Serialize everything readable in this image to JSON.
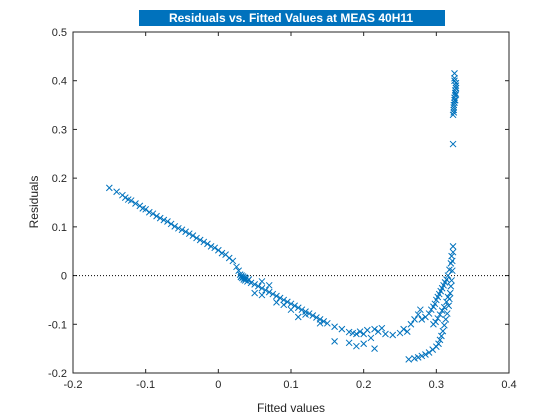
{
  "chart_data": {
    "type": "scatter",
    "title": "Residuals vs. Fitted Values at MEAS 40H11",
    "xlabel": "Fitted values",
    "ylabel": "Residuals",
    "xlim": [
      -0.2,
      0.4
    ],
    "ylim": [
      -0.2,
      0.5
    ],
    "xticks": [
      -0.2,
      -0.1,
      0,
      0.1,
      0.2,
      0.3,
      0.4
    ],
    "xtick_labels": [
      "-0.2",
      "-0.1",
      "0",
      "0.1",
      "0.2",
      "0.3",
      "0.4"
    ],
    "yticks": [
      -0.2,
      -0.1,
      0,
      0.1,
      0.2,
      0.3,
      0.4,
      0.5
    ],
    "ytick_labels": [
      "-0.2",
      "-0.1",
      "0",
      "0.1",
      "0.2",
      "0.3",
      "0.4",
      "0.5"
    ],
    "marker": "x",
    "reference_line": {
      "y": 0,
      "style": "dotted"
    },
    "colors": {
      "series": "#0072BD",
      "title_bg": "#0072BD",
      "axis": "#262626"
    },
    "series": [
      {
        "points": [
          [
            -0.15,
            0.18
          ],
          [
            -0.14,
            0.172
          ],
          [
            -0.132,
            0.165
          ],
          [
            -0.128,
            0.16
          ],
          [
            -0.124,
            0.156
          ],
          [
            -0.12,
            0.154
          ],
          [
            -0.114,
            0.148
          ],
          [
            -0.108,
            0.143
          ],
          [
            -0.104,
            0.138
          ],
          [
            -0.1,
            0.136
          ],
          [
            -0.095,
            0.13
          ],
          [
            -0.09,
            0.127
          ],
          [
            -0.085,
            0.122
          ],
          [
            -0.08,
            0.118
          ],
          [
            -0.075,
            0.114
          ],
          [
            -0.07,
            0.111
          ],
          [
            -0.065,
            0.106
          ],
          [
            -0.06,
            0.101
          ],
          [
            -0.055,
            0.097
          ],
          [
            -0.05,
            0.094
          ],
          [
            -0.045,
            0.09
          ],
          [
            -0.04,
            0.086
          ],
          [
            -0.035,
            0.082
          ],
          [
            -0.03,
            0.077
          ],
          [
            -0.025,
            0.073
          ],
          [
            -0.02,
            0.069
          ],
          [
            -0.015,
            0.065
          ],
          [
            -0.01,
            0.06
          ],
          [
            -0.005,
            0.057
          ],
          [
            0.0,
            0.052
          ],
          [
            0.005,
            0.046
          ],
          [
            0.01,
            0.043
          ],
          [
            0.015,
            0.036
          ],
          [
            0.02,
            0.03
          ],
          [
            0.025,
            0.018
          ],
          [
            0.028,
            0.01
          ],
          [
            0.03,
            0.002
          ],
          [
            0.031,
            -0.003
          ],
          [
            0.032,
            0.0
          ],
          [
            0.033,
            -0.005
          ],
          [
            0.034,
            -0.002
          ],
          [
            0.035,
            -0.008
          ],
          [
            0.036,
            -0.004
          ],
          [
            0.037,
            -0.01
          ],
          [
            0.038,
            -0.006
          ],
          [
            0.04,
            -0.012
          ],
          [
            0.042,
            -0.008
          ],
          [
            0.045,
            -0.015
          ],
          [
            0.05,
            -0.018
          ],
          [
            0.055,
            -0.022
          ],
          [
            0.06,
            -0.026
          ],
          [
            0.065,
            -0.03
          ],
          [
            0.07,
            -0.034
          ],
          [
            0.075,
            -0.038
          ],
          [
            0.08,
            -0.042
          ],
          [
            0.085,
            -0.046
          ],
          [
            0.09,
            -0.05
          ],
          [
            0.095,
            -0.054
          ],
          [
            0.1,
            -0.058
          ],
          [
            0.105,
            -0.062
          ],
          [
            0.11,
            -0.066
          ],
          [
            0.115,
            -0.07
          ],
          [
            0.12,
            -0.074
          ],
          [
            0.125,
            -0.078
          ],
          [
            0.13,
            -0.082
          ],
          [
            0.135,
            -0.086
          ],
          [
            0.14,
            -0.09
          ],
          [
            0.145,
            -0.094
          ],
          [
            0.15,
            -0.098
          ],
          [
            0.16,
            -0.105
          ],
          [
            0.17,
            -0.11
          ],
          [
            0.18,
            -0.116
          ],
          [
            0.185,
            -0.118
          ],
          [
            0.19,
            -0.12
          ],
          [
            0.195,
            -0.115
          ],
          [
            0.2,
            -0.12
          ],
          [
            0.205,
            -0.112
          ],
          [
            0.21,
            -0.128
          ],
          [
            0.215,
            -0.11
          ],
          [
            0.22,
            -0.115
          ],
          [
            0.225,
            -0.108
          ],
          [
            0.23,
            -0.12
          ],
          [
            0.24,
            -0.122
          ],
          [
            0.25,
            -0.118
          ],
          [
            0.255,
            -0.11
          ],
          [
            0.26,
            -0.115
          ],
          [
            0.265,
            -0.1
          ],
          [
            0.27,
            -0.09
          ],
          [
            0.275,
            -0.08
          ],
          [
            0.278,
            -0.07
          ],
          [
            0.16,
            -0.135
          ],
          [
            0.18,
            -0.138
          ],
          [
            0.19,
            -0.145
          ],
          [
            0.2,
            -0.14
          ],
          [
            0.215,
            -0.15
          ],
          [
            0.12,
            -0.08
          ],
          [
            0.09,
            -0.06
          ],
          [
            0.06,
            -0.04
          ],
          [
            0.05,
            -0.036
          ],
          [
            0.1,
            -0.07
          ],
          [
            0.08,
            -0.055
          ],
          [
            0.11,
            -0.085
          ],
          [
            0.14,
            -0.098
          ],
          [
            0.07,
            -0.02
          ],
          [
            0.06,
            -0.012
          ],
          [
            0.262,
            -0.172
          ],
          [
            0.27,
            -0.17
          ],
          [
            0.275,
            -0.168
          ],
          [
            0.28,
            -0.165
          ],
          [
            0.285,
            -0.162
          ],
          [
            0.29,
            -0.158
          ],
          [
            0.295,
            -0.152
          ],
          [
            0.3,
            -0.146
          ],
          [
            0.303,
            -0.14
          ],
          [
            0.305,
            -0.132
          ],
          [
            0.307,
            -0.124
          ],
          [
            0.309,
            -0.114
          ],
          [
            0.311,
            -0.102
          ],
          [
            0.313,
            -0.09
          ],
          [
            0.315,
            -0.078
          ],
          [
            0.317,
            -0.062
          ],
          [
            0.318,
            -0.048
          ],
          [
            0.319,
            -0.036
          ],
          [
            0.32,
            -0.022
          ],
          [
            0.321,
            -0.01
          ],
          [
            0.322,
            0.01
          ],
          [
            0.322,
            0.03
          ],
          [
            0.323,
            0.048
          ],
          [
            0.323,
            0.06
          ],
          [
            0.28,
            -0.09
          ],
          [
            0.285,
            -0.085
          ],
          [
            0.29,
            -0.078
          ],
          [
            0.293,
            -0.07
          ],
          [
            0.296,
            -0.064
          ],
          [
            0.298,
            -0.058
          ],
          [
            0.3,
            -0.05
          ],
          [
            0.302,
            -0.044
          ],
          [
            0.304,
            -0.038
          ],
          [
            0.306,
            -0.032
          ],
          [
            0.308,
            -0.026
          ],
          [
            0.31,
            -0.02
          ],
          [
            0.312,
            -0.014
          ],
          [
            0.314,
            -0.008
          ],
          [
            0.316,
            0.0
          ],
          [
            0.318,
            0.012
          ],
          [
            0.296,
            -0.1
          ],
          [
            0.299,
            -0.095
          ],
          [
            0.302,
            -0.088
          ],
          [
            0.305,
            -0.08
          ],
          [
            0.308,
            -0.072
          ],
          [
            0.311,
            -0.065
          ],
          [
            0.314,
            -0.054
          ],
          [
            0.316,
            -0.044
          ],
          [
            0.32,
            0.025
          ],
          [
            0.321,
            0.04
          ],
          [
            0.323,
            0.27
          ],
          [
            0.323,
            0.33
          ],
          [
            0.324,
            0.34
          ],
          [
            0.324,
            0.35
          ],
          [
            0.325,
            0.355
          ],
          [
            0.325,
            0.36
          ],
          [
            0.325,
            0.365
          ],
          [
            0.326,
            0.37
          ],
          [
            0.326,
            0.375
          ],
          [
            0.326,
            0.38
          ],
          [
            0.327,
            0.385
          ],
          [
            0.327,
            0.39
          ],
          [
            0.327,
            0.395
          ],
          [
            0.325,
            0.4
          ],
          [
            0.325,
            0.405
          ],
          [
            0.325,
            0.415
          ],
          [
            0.324,
            0.345
          ],
          [
            0.326,
            0.36
          ],
          [
            0.327,
            0.372
          ],
          [
            0.324,
            0.335
          ]
        ]
      }
    ]
  }
}
